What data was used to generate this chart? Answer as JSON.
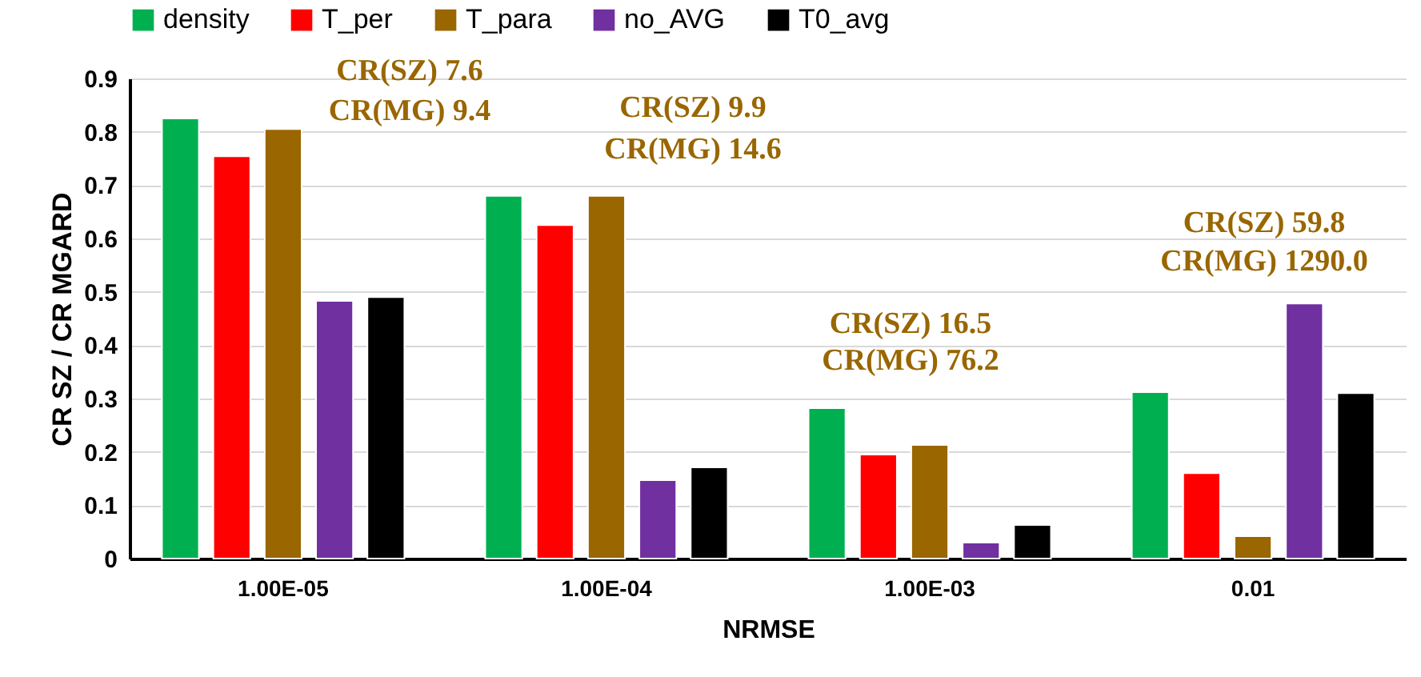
{
  "chart_data": {
    "type": "bar",
    "xlabel": "NRMSE",
    "ylabel": "CR SZ / CR MGARD",
    "categories": [
      "1.00E-05",
      "1.00E-04",
      "1.00E-03",
      "0.01"
    ],
    "series": [
      {
        "name": "density",
        "color": "#00b050",
        "values": [
          0.825,
          0.68,
          0.282,
          0.312
        ]
      },
      {
        "name": "T_per",
        "color": "#ff0000",
        "values": [
          0.754,
          0.625,
          0.195,
          0.16
        ]
      },
      {
        "name": "T_para",
        "color": "#996600",
        "values": [
          0.805,
          0.68,
          0.213,
          0.042
        ]
      },
      {
        "name": "no_AVG",
        "color": "#7030a0",
        "values": [
          0.483,
          0.147,
          0.03,
          0.478
        ]
      },
      {
        "name": "T0_avg",
        "color": "#000000",
        "values": [
          0.49,
          0.171,
          0.063,
          0.31
        ]
      }
    ],
    "ylim": [
      0,
      0.9
    ],
    "yticks": [
      {
        "value": 0,
        "label": "0"
      },
      0.1,
      0.2,
      0.3,
      0.4,
      0.5,
      0.6,
      0.7,
      0.8,
      0.9
    ],
    "grid": "y",
    "legend": "top",
    "annotations": [
      "CR(SZ)    7.6",
      "CR(MG)  9.4",
      "CR(SZ)    9.9",
      "CR(MG)  14.6",
      "CR(SZ)    16.5",
      "CR(MG)  76.2",
      "CR(SZ)         59.8",
      "CR(MG)  1290.0"
    ]
  }
}
